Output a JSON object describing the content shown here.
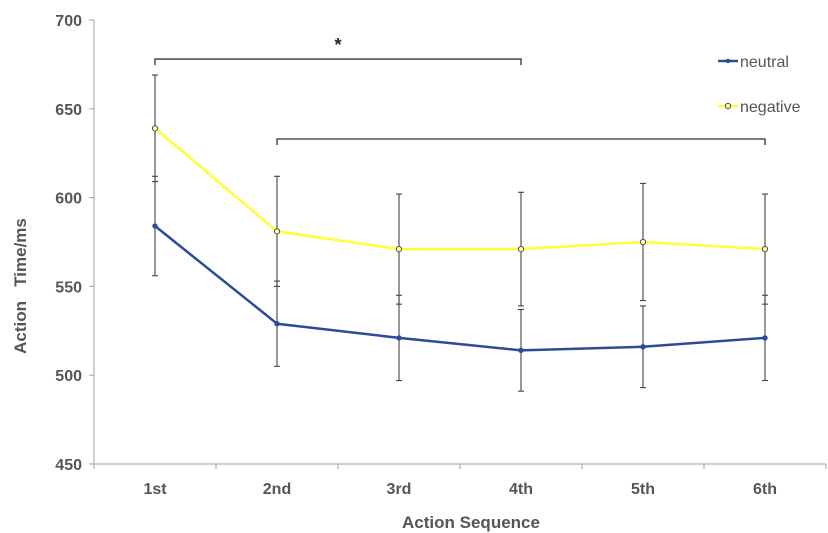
{
  "chart_data": {
    "type": "line",
    "title": "",
    "xlabel": "Action Sequence",
    "ylabel": "Action   Time/ms",
    "categories": [
      "1st",
      "2nd",
      "3rd",
      "4th",
      "5th",
      "6th"
    ],
    "ylim": [
      450,
      700
    ],
    "yticks": [
      "450",
      "500",
      "550",
      "600",
      "650",
      "700"
    ],
    "grid": false,
    "legend_position": "top-right",
    "series": [
      {
        "name": "neutral",
        "color": "#2a4a9a",
        "marker": "filled-dot",
        "values": [
          584,
          529,
          521,
          514,
          516,
          521
        ],
        "error": [
          28,
          24,
          24,
          23,
          23,
          24
        ]
      },
      {
        "name": "negative",
        "color": "#ffff33",
        "marker": "open-circle",
        "values": [
          639,
          581,
          571,
          571,
          575,
          571
        ],
        "error": [
          30,
          31,
          31,
          32,
          33,
          31
        ]
      }
    ],
    "annotations": [
      {
        "text": "*",
        "from": "1st",
        "to": "4th",
        "y": 678
      },
      {
        "text": "",
        "from": "2nd",
        "to": "6th",
        "y": 633
      }
    ]
  }
}
